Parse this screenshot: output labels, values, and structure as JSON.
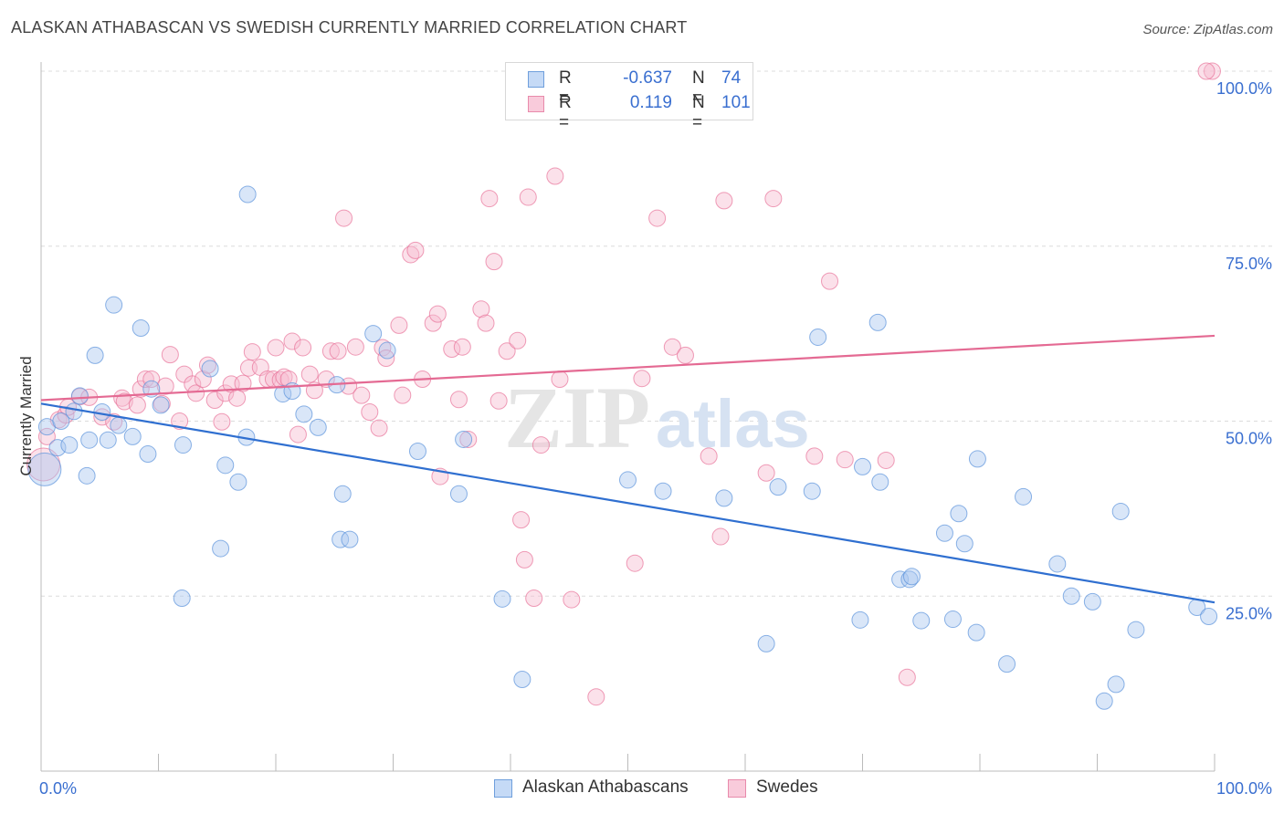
{
  "header": {
    "title": "ALASKAN ATHABASCAN VS SWEDISH CURRENTLY MARRIED CORRELATION CHART",
    "source": "Source: ZipAtlas.com"
  },
  "legend": {
    "rows": [
      {
        "r_label": "R =",
        "r_value": "-0.637",
        "n_label": "N =",
        "n_value": "74",
        "color": "#aac8f0"
      },
      {
        "r_label": "R =",
        "r_value": "0.119",
        "n_label": "N =",
        "n_value": "101",
        "color": "#f7bdd0"
      }
    ]
  },
  "bottom_legend": {
    "items": [
      {
        "label": "Alaskan Athabascans",
        "color": "#aac8f0"
      },
      {
        "label": "Swedes",
        "color": "#f7bdd0"
      }
    ]
  },
  "watermark": {
    "zip": "ZIP",
    "atlas": "atlas"
  },
  "chart_data": {
    "type": "scatter",
    "title": "ALASKAN ATHABASCAN VS SWEDISH CURRENTLY MARRIED CORRELATION CHART",
    "xlabel": "",
    "ylabel": "Currently Married",
    "xlim": [
      0,
      100
    ],
    "ylim": [
      0,
      100
    ],
    "x_tick_labels": [
      "0.0%",
      "100.0%"
    ],
    "y_tick_labels": [
      "25.0%",
      "50.0%",
      "75.0%",
      "100.0%"
    ],
    "y_ticks": [
      25,
      50,
      75,
      100
    ],
    "grid": true,
    "legend_position": "top-center",
    "series": [
      {
        "name": "Alaskan Athabascans",
        "color": "#5b93dc",
        "fill": "#aac8f0",
        "trend": {
          "x": [
            0,
            100
          ],
          "y": [
            52.5,
            24.1
          ]
        },
        "points": [
          [
            0.3,
            43.1
          ],
          [
            0.5,
            49.2
          ],
          [
            1.4,
            46.2
          ],
          [
            1.7,
            50.0
          ],
          [
            2.4,
            46.6
          ],
          [
            2.8,
            51.4
          ],
          [
            3.3,
            53.6
          ],
          [
            3.9,
            42.2
          ],
          [
            4.1,
            47.3
          ],
          [
            4.6,
            59.4
          ],
          [
            5.2,
            51.3
          ],
          [
            5.7,
            47.3
          ],
          [
            6.2,
            66.6
          ],
          [
            6.6,
            49.4
          ],
          [
            7.8,
            47.8
          ],
          [
            8.5,
            63.3
          ],
          [
            9.1,
            45.3
          ],
          [
            9.4,
            54.6
          ],
          [
            10.2,
            52.3
          ],
          [
            12.0,
            24.7
          ],
          [
            12.1,
            46.6
          ],
          [
            14.4,
            57.5
          ],
          [
            15.3,
            31.8
          ],
          [
            15.7,
            43.7
          ],
          [
            16.8,
            41.3
          ],
          [
            17.5,
            47.7
          ],
          [
            17.6,
            82.4
          ],
          [
            20.6,
            53.9
          ],
          [
            21.4,
            54.3
          ],
          [
            22.4,
            51.0
          ],
          [
            23.6,
            49.1
          ],
          [
            25.2,
            55.2
          ],
          [
            25.5,
            33.1
          ],
          [
            25.7,
            39.6
          ],
          [
            26.3,
            33.1
          ],
          [
            28.3,
            62.5
          ],
          [
            29.5,
            60.1
          ],
          [
            32.1,
            45.7
          ],
          [
            35.6,
            39.6
          ],
          [
            36.0,
            47.4
          ],
          [
            39.3,
            24.6
          ],
          [
            41.0,
            13.1
          ],
          [
            50.0,
            41.6
          ],
          [
            53.0,
            40.0
          ],
          [
            58.2,
            39.0
          ],
          [
            61.8,
            18.2
          ],
          [
            62.8,
            40.6
          ],
          [
            65.7,
            40.0
          ],
          [
            66.2,
            62.0
          ],
          [
            69.8,
            21.6
          ],
          [
            70.0,
            43.5
          ],
          [
            71.3,
            64.1
          ],
          [
            71.5,
            41.3
          ],
          [
            73.2,
            27.4
          ],
          [
            74.0,
            27.4
          ],
          [
            74.2,
            27.8
          ],
          [
            75.0,
            21.5
          ],
          [
            77.0,
            34.0
          ],
          [
            77.7,
            21.7
          ],
          [
            78.2,
            36.8
          ],
          [
            78.7,
            32.5
          ],
          [
            79.7,
            19.8
          ],
          [
            79.8,
            44.6
          ],
          [
            82.3,
            15.3
          ],
          [
            83.7,
            39.2
          ],
          [
            86.6,
            29.6
          ],
          [
            87.8,
            25.0
          ],
          [
            89.6,
            24.2
          ],
          [
            90.6,
            10.0
          ],
          [
            91.6,
            12.4
          ],
          [
            92.0,
            37.1
          ],
          [
            93.3,
            20.2
          ],
          [
            98.5,
            23.4
          ],
          [
            99.5,
            22.1
          ]
        ]
      },
      {
        "name": "Swedes",
        "color": "#e8739a",
        "fill": "#f7bdd0",
        "trend": {
          "x": [
            0,
            100
          ],
          "y": [
            53.0,
            62.2
          ]
        },
        "points": [
          [
            0.2,
            43.8
          ],
          [
            0.5,
            47.8
          ],
          [
            1.5,
            50.2
          ],
          [
            2.1,
            50.9
          ],
          [
            2.3,
            52.0
          ],
          [
            3.3,
            53.5
          ],
          [
            4.1,
            53.4
          ],
          [
            5.2,
            50.6
          ],
          [
            6.2,
            49.9
          ],
          [
            6.9,
            53.3
          ],
          [
            7.1,
            52.8
          ],
          [
            8.2,
            52.3
          ],
          [
            8.5,
            54.6
          ],
          [
            8.9,
            56.0
          ],
          [
            9.4,
            56.0
          ],
          [
            10.3,
            52.5
          ],
          [
            10.6,
            55.0
          ],
          [
            11.0,
            59.5
          ],
          [
            11.8,
            50.0
          ],
          [
            12.2,
            56.7
          ],
          [
            12.9,
            55.3
          ],
          [
            13.2,
            54.0
          ],
          [
            13.8,
            56.0
          ],
          [
            14.2,
            58.0
          ],
          [
            14.8,
            53.0
          ],
          [
            15.4,
            49.9
          ],
          [
            15.7,
            54.0
          ],
          [
            16.2,
            55.3
          ],
          [
            16.7,
            53.3
          ],
          [
            17.2,
            55.4
          ],
          [
            17.7,
            57.6
          ],
          [
            18.0,
            59.9
          ],
          [
            18.7,
            57.7
          ],
          [
            19.3,
            56.0
          ],
          [
            19.8,
            56.0
          ],
          [
            20.0,
            60.5
          ],
          [
            20.4,
            55.9
          ],
          [
            20.7,
            56.3
          ],
          [
            21.1,
            56.0
          ],
          [
            21.4,
            61.4
          ],
          [
            21.9,
            48.1
          ],
          [
            22.3,
            60.5
          ],
          [
            22.9,
            56.7
          ],
          [
            23.3,
            54.4
          ],
          [
            24.3,
            56.0
          ],
          [
            24.7,
            60.0
          ],
          [
            25.3,
            60.0
          ],
          [
            25.8,
            79.0
          ],
          [
            26.2,
            55.0
          ],
          [
            26.8,
            60.6
          ],
          [
            27.3,
            53.7
          ],
          [
            28.0,
            51.3
          ],
          [
            28.8,
            49.0
          ],
          [
            29.1,
            60.5
          ],
          [
            29.4,
            59.0
          ],
          [
            30.5,
            63.7
          ],
          [
            30.8,
            53.7
          ],
          [
            31.5,
            73.8
          ],
          [
            31.9,
            74.4
          ],
          [
            32.5,
            56.0
          ],
          [
            33.4,
            64.0
          ],
          [
            33.8,
            65.3
          ],
          [
            34.0,
            42.1
          ],
          [
            35.0,
            60.3
          ],
          [
            35.6,
            53.1
          ],
          [
            35.9,
            60.6
          ],
          [
            36.4,
            47.4
          ],
          [
            37.5,
            66.0
          ],
          [
            37.9,
            64.0
          ],
          [
            38.2,
            81.8
          ],
          [
            38.6,
            72.8
          ],
          [
            39.0,
            52.9
          ],
          [
            39.7,
            60.0
          ],
          [
            40.6,
            61.5
          ],
          [
            40.9,
            35.9
          ],
          [
            41.2,
            30.2
          ],
          [
            41.5,
            82.0
          ],
          [
            42.0,
            24.7
          ],
          [
            42.6,
            46.6
          ],
          [
            43.8,
            85.0
          ],
          [
            44.2,
            56.0
          ],
          [
            45.2,
            24.5
          ],
          [
            47.3,
            10.6
          ],
          [
            47.6,
            100.0
          ],
          [
            50.6,
            29.7
          ],
          [
            51.2,
            56.1
          ],
          [
            52.5,
            79.0
          ],
          [
            53.8,
            60.6
          ],
          [
            54.9,
            59.4
          ],
          [
            56.9,
            45.0
          ],
          [
            57.9,
            33.5
          ],
          [
            58.2,
            81.5
          ],
          [
            61.8,
            42.6
          ],
          [
            62.4,
            81.8
          ],
          [
            65.9,
            45.0
          ],
          [
            67.2,
            70.0
          ],
          [
            68.5,
            44.5
          ],
          [
            72.0,
            44.4
          ],
          [
            73.8,
            13.4
          ],
          [
            99.8,
            100.0
          ],
          [
            99.3,
            100.0
          ]
        ]
      }
    ]
  }
}
